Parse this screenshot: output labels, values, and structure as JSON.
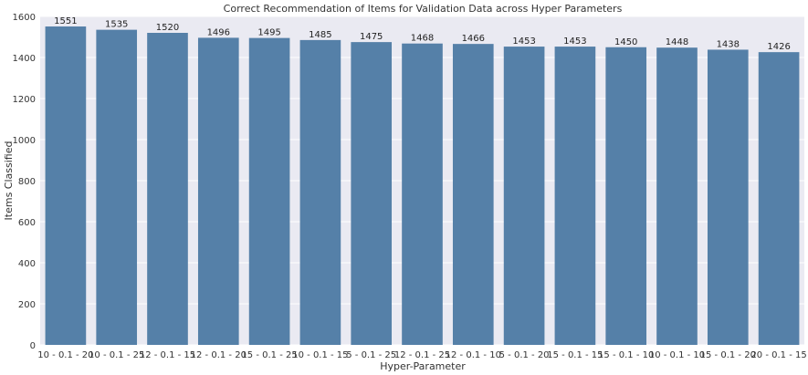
{
  "chart_data": {
    "type": "bar",
    "title": "Correct Recommendation of Items for Validation Data across Hyper Parameters",
    "xlabel": "Hyper-Parameter",
    "ylabel": "Items Classified",
    "ylim": [
      0,
      1600
    ],
    "yticks": [
      0,
      200,
      400,
      600,
      800,
      1000,
      1200,
      1400,
      1600
    ],
    "grid": true,
    "categories": [
      "10 - 0.1 - 20",
      "10 - 0.1 - 25",
      "12 - 0.1 - 15",
      "12 - 0.1 - 20",
      "15 - 0.1 - 25",
      "10 - 0.1 - 15",
      "5 - 0.1 - 25",
      "12 - 0.1 - 25",
      "12 - 0.1 - 10",
      "5 - 0.1 - 20",
      "15 - 0.1 - 15",
      "15 - 0.1 - 10",
      "10 - 0.1 - 10",
      "15 - 0.1 - 20",
      "20 - 0.1 - 15"
    ],
    "values": [
      1551,
      1535,
      1520,
      1496,
      1495,
      1485,
      1475,
      1468,
      1466,
      1453,
      1453,
      1450,
      1448,
      1438,
      1426
    ],
    "colors": {
      "bar": "#5580a8",
      "plot_background": "#eaeaf2",
      "grid": "#ffffff"
    }
  }
}
